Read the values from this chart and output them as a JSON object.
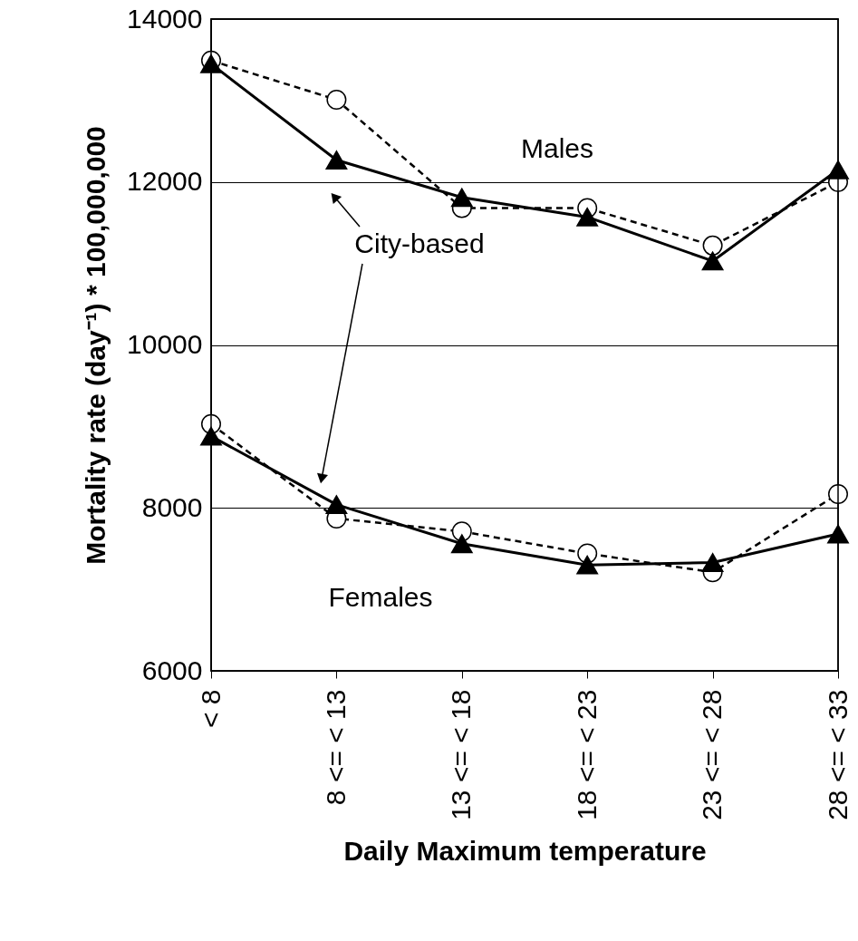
{
  "chart_data": {
    "type": "line",
    "xlabel": "Daily Maximum temperature",
    "ylabel": "Mortality rate (day⁻¹) * 100,000,000",
    "categories": [
      "< 8",
      "8 <= < 13",
      "13 <= < 18",
      "18 <= < 23",
      "23 <= < 28",
      "28 <= < 33"
    ],
    "series": [
      {
        "color": "#000000",
        "marker": "circle",
        "line_style": "dashed",
        "values": [
          13490,
          13010,
          11680,
          11680,
          11220,
          12000
        ]
      },
      {
        "color": "#000000",
        "marker": "triangle",
        "line_style": "solid",
        "values": [
          13450,
          12270,
          11810,
          11570,
          11030,
          12150
        ]
      },
      {
        "color": "#000000",
        "marker": "circle",
        "line_style": "dashed",
        "values": [
          9030,
          7870,
          7710,
          7440,
          7210,
          8170
        ]
      },
      {
        "color": "#000000",
        "marker": "triangle",
        "line_style": "solid",
        "values": [
          8880,
          8040,
          7560,
          7300,
          7330,
          7680
        ]
      }
    ],
    "ylim": [
      6000,
      14000
    ],
    "yticks": [
      6000,
      8000,
      10000,
      12000,
      14000
    ],
    "grid": "y",
    "annotations": [
      "Males",
      "City-based",
      "Females"
    ]
  }
}
